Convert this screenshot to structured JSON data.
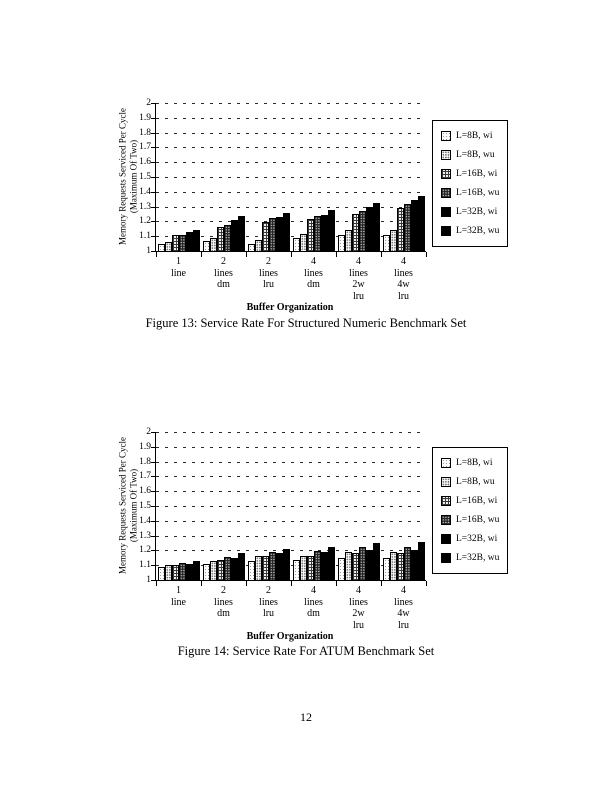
{
  "page": {
    "number": "12"
  },
  "colors": {
    "ink": "#000000",
    "paper": "#ffffff",
    "grid": "#2a2a2a"
  },
  "chart_data": [
    {
      "type": "bar",
      "caption": "Figure 13: Service Rate For Structured Numeric Benchmark Set",
      "ylabel": "Memory Requests Serviced Per Cycle",
      "ylabel2": "(Maximum Of Two)",
      "xlabel": "Buffer Organization",
      "ylim": [
        1,
        2
      ],
      "yticks": [
        "2",
        "1.9",
        "1.8",
        "1.7",
        "1.6",
        "1.5",
        "1.4",
        "1.3",
        "1.2",
        "1.1",
        "1"
      ],
      "grid": "dashed-horizontal",
      "legend_position": "right",
      "categories": [
        [
          "1",
          "line"
        ],
        [
          "2",
          "lines",
          "dm"
        ],
        [
          "2",
          "lines",
          "lru"
        ],
        [
          "4",
          "lines",
          "dm"
        ],
        [
          "4",
          "lines",
          "2w",
          "lru"
        ],
        [
          "4",
          "lines",
          "4w",
          "lru"
        ]
      ],
      "series": [
        {
          "name": "L=8B, wi",
          "pattern": "dots-light",
          "values": [
            1.05,
            1.065,
            1.05,
            1.085,
            1.105,
            1.105
          ]
        },
        {
          "name": "L=8B, wu",
          "pattern": "dots-med",
          "values": [
            1.06,
            1.09,
            1.075,
            1.115,
            1.145,
            1.145
          ]
        },
        {
          "name": "L=16B, wi",
          "pattern": "grid",
          "values": [
            1.105,
            1.16,
            1.195,
            1.215,
            1.25,
            1.29
          ]
        },
        {
          "name": "L=16B, wu",
          "pattern": "grid-dark",
          "values": [
            1.11,
            1.175,
            1.22,
            1.235,
            1.27,
            1.315
          ]
        },
        {
          "name": "L=32B, wi",
          "pattern": "solid",
          "values": [
            1.13,
            1.21,
            1.23,
            1.245,
            1.295,
            1.345
          ]
        },
        {
          "name": "L=32B, wu",
          "pattern": "solid",
          "values": [
            1.145,
            1.235,
            1.26,
            1.275,
            1.325,
            1.375
          ]
        }
      ]
    },
    {
      "type": "bar",
      "caption": "Figure 14: Service Rate For ATUM Benchmark Set",
      "ylabel": "Memory Requests Serviced Per Cycle",
      "ylabel2": "(Maximum Of Two)",
      "xlabel": "Buffer Organization",
      "ylim": [
        1,
        2
      ],
      "yticks": [
        "2",
        "1.9",
        "1.8",
        "1.7",
        "1.6",
        "1.5",
        "1.4",
        "1.3",
        "1.2",
        "1.1",
        "1"
      ],
      "grid": "dashed-horizontal",
      "legend_position": "right",
      "categories": [
        [
          "1",
          "line"
        ],
        [
          "2",
          "lines",
          "dm"
        ],
        [
          "2",
          "lines",
          "lru"
        ],
        [
          "4",
          "lines",
          "dm"
        ],
        [
          "4",
          "lines",
          "2w",
          "lru"
        ],
        [
          "4",
          "lines",
          "4w",
          "lru"
        ]
      ],
      "series": [
        {
          "name": "L=8B, wi",
          "pattern": "dots-light",
          "values": [
            1.09,
            1.11,
            1.13,
            1.135,
            1.15,
            1.15
          ]
        },
        {
          "name": "L=8B, wu",
          "pattern": "dots-med",
          "values": [
            1.1,
            1.13,
            1.165,
            1.16,
            1.19,
            1.19
          ]
        },
        {
          "name": "L=16B, wi",
          "pattern": "grid",
          "values": [
            1.1,
            1.135,
            1.16,
            1.16,
            1.185,
            1.185
          ]
        },
        {
          "name": "L=16B, wu",
          "pattern": "grid-dark",
          "values": [
            1.115,
            1.155,
            1.19,
            1.195,
            1.22,
            1.22
          ]
        },
        {
          "name": "L=32B, wi",
          "pattern": "solid",
          "values": [
            1.11,
            1.15,
            1.18,
            1.19,
            1.2,
            1.2
          ]
        },
        {
          "name": "L=32B, wu",
          "pattern": "solid",
          "values": [
            1.13,
            1.18,
            1.21,
            1.22,
            1.25,
            1.255
          ]
        }
      ]
    }
  ]
}
